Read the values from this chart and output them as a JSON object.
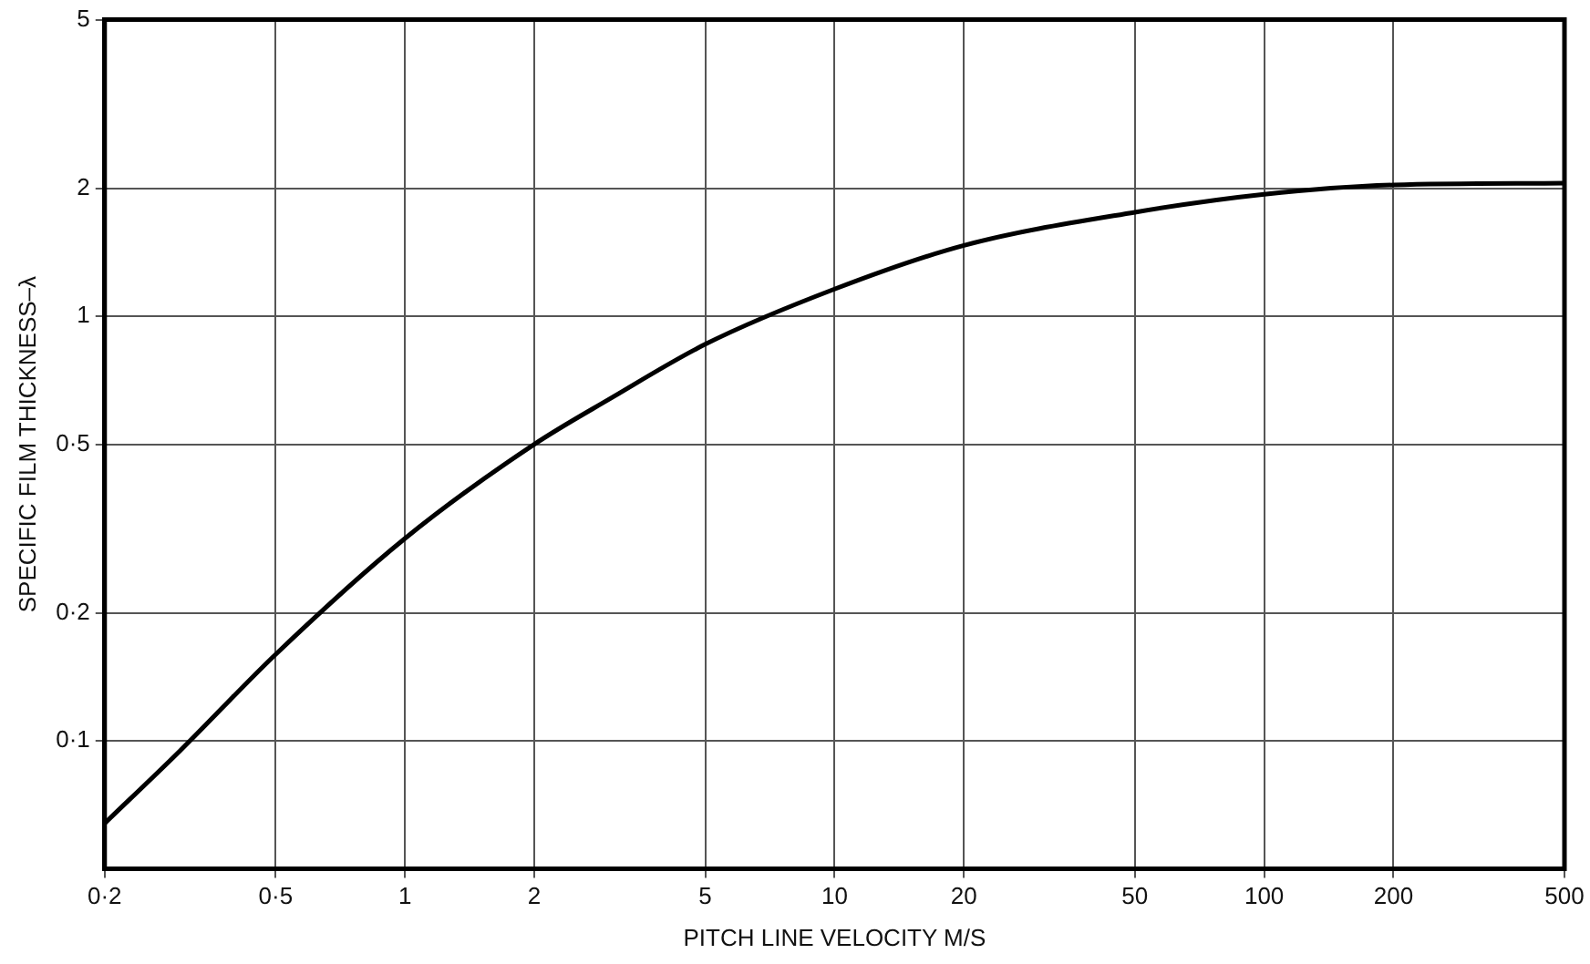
{
  "chart_data": {
    "type": "line",
    "xlabel": "PITCH LINE VELOCITY M/S",
    "ylabel": "SPECIFIC FILM THICKNESS–λ",
    "log": "xy",
    "grid": true,
    "legend": false,
    "marker": "none",
    "line_style": "solid",
    "xlim": [
      0.2,
      500
    ],
    "ylim": [
      0.05,
      5
    ],
    "xticks": [
      {
        "value": 0.2,
        "label": "0·2"
      },
      {
        "value": 0.5,
        "label": "0·5"
      },
      1,
      2,
      5,
      10,
      20,
      50,
      100,
      200,
      500
    ],
    "yticks": [
      {
        "value": 0.1,
        "label": "0·1"
      },
      {
        "value": 0.2,
        "label": "0·2"
      },
      {
        "value": 0.5,
        "label": "0·5"
      },
      1,
      2,
      5
    ],
    "series": [
      {
        "color": "#000000",
        "x": [
          0.2,
          0.3,
          0.5,
          1,
          2,
          3,
          5,
          10,
          20,
          50,
          100,
          200,
          500
        ],
        "values": [
          0.064,
          0.095,
          0.16,
          0.3,
          0.5,
          0.64,
          0.86,
          1.16,
          1.47,
          1.76,
          1.94,
          2.04,
          2.06
        ]
      }
    ]
  }
}
